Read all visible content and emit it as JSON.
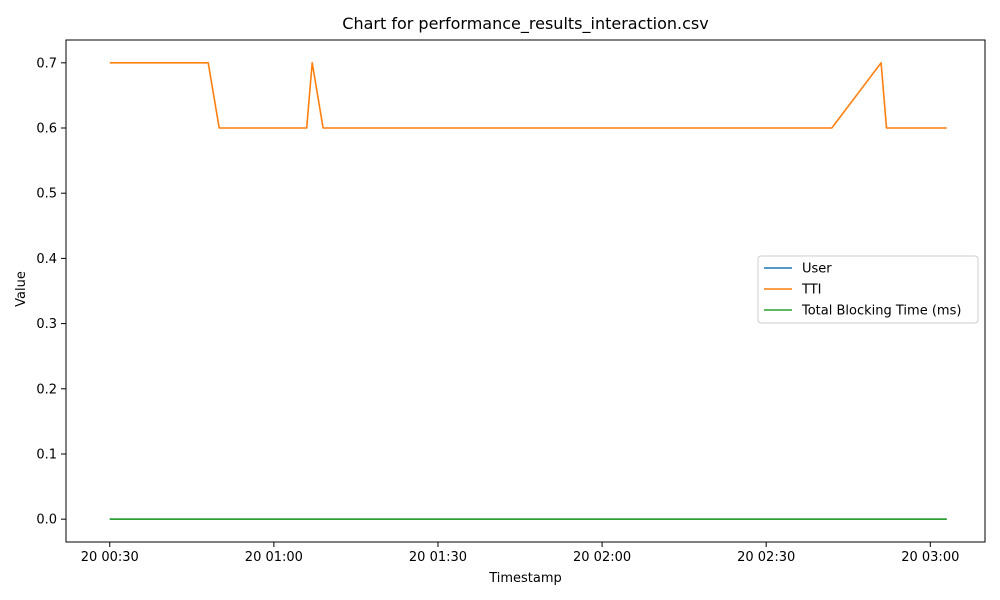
{
  "chart_data": {
    "type": "line",
    "title": "Chart for performance_results_interaction.csv",
    "xlabel": "Timestamp",
    "ylabel": "Value",
    "x_unit": "time",
    "xlim": [
      "20 00:22",
      "20 03:10"
    ],
    "ylim": [
      -0.035,
      0.735
    ],
    "x_ticks": [
      {
        "label": "20 00:30",
        "t": "20 00:30"
      },
      {
        "label": "20 01:00",
        "t": "20 01:00"
      },
      {
        "label": "20 01:30",
        "t": "20 01:30"
      },
      {
        "label": "20 02:00",
        "t": "20 02:00"
      },
      {
        "label": "20 02:30",
        "t": "20 02:30"
      },
      {
        "label": "20 03:00",
        "t": "20 03:00"
      }
    ],
    "y_ticks": [
      0.0,
      0.1,
      0.2,
      0.3,
      0.4,
      0.5,
      0.6,
      0.7
    ],
    "y_tick_labels": [
      "0.0",
      "0.1",
      "0.2",
      "0.3",
      "0.4",
      "0.5",
      "0.6",
      "0.7"
    ],
    "grid": false,
    "legend_position": "center-right",
    "series": [
      {
        "name": "User",
        "color": "#1f77b4",
        "points": [
          [
            "20 00:30",
            0.0
          ],
          [
            "20 03:03",
            0.0
          ]
        ]
      },
      {
        "name": "TTI",
        "color": "#ff7f0e",
        "points": [
          [
            "20 00:30",
            0.7
          ],
          [
            "20 00:48",
            0.7
          ],
          [
            "20 00:50",
            0.6
          ],
          [
            "20 01:06",
            0.6
          ],
          [
            "20 01:07",
            0.7
          ],
          [
            "20 01:09",
            0.6
          ],
          [
            "20 02:42",
            0.6
          ],
          [
            "20 02:51",
            0.7
          ],
          [
            "20 02:52",
            0.6
          ],
          [
            "20 03:03",
            0.6
          ]
        ]
      },
      {
        "name": "Total Blocking Time (ms)",
        "color": "#2ca02c",
        "points": [
          [
            "20 00:30",
            0.0
          ],
          [
            "20 03:03",
            0.0
          ]
        ]
      }
    ]
  }
}
